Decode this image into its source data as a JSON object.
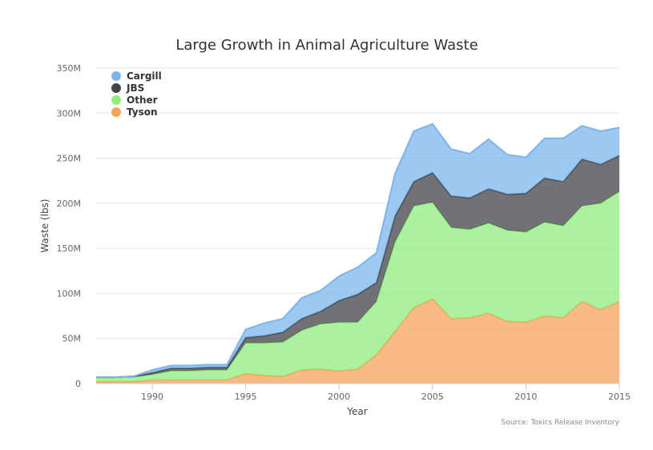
{
  "chart_data": {
    "type": "area",
    "stacked": true,
    "title": "Large Growth in Animal Agriculture Waste",
    "xlabel": "Year",
    "ylabel": "Waste (lbs)",
    "credit": "Source: Toxics Release Inventory",
    "xlim": [
      1987,
      2015
    ],
    "ylim": [
      0,
      350000000
    ],
    "x_ticks": [
      1990,
      1995,
      2000,
      2005,
      2010,
      2015
    ],
    "y_ticks": [
      {
        "value": 0,
        "label": "0"
      },
      {
        "value": 50000000,
        "label": "50M"
      },
      {
        "value": 100000000,
        "label": "100M"
      },
      {
        "value": 150000000,
        "label": "150M"
      },
      {
        "value": 200000000,
        "label": "200M"
      },
      {
        "value": 250000000,
        "label": "250M"
      },
      {
        "value": 300000000,
        "label": "300M"
      },
      {
        "value": 350000000,
        "label": "350M"
      }
    ],
    "legend_position": "top-left",
    "x": [
      1987,
      1988,
      1989,
      1990,
      1991,
      1992,
      1993,
      1994,
      1995,
      1996,
      1997,
      1998,
      1999,
      2000,
      2001,
      2002,
      2003,
      2004,
      2005,
      2006,
      2007,
      2008,
      2009,
      2010,
      2011,
      2012,
      2013,
      2014,
      2015
    ],
    "series": [
      {
        "name": "Cargill",
        "color": "#7cb5ec",
        "values": [
          0,
          0,
          0,
          3000000,
          3000000,
          3000000,
          3000000,
          3000000,
          9000000,
          14000000,
          15000000,
          23000000,
          23000000,
          27000000,
          30000000,
          33000000,
          47000000,
          56000000,
          54000000,
          52000000,
          49000000,
          55000000,
          44000000,
          40000000,
          44000000,
          48000000,
          37000000,
          37000000,
          31000000
        ]
      },
      {
        "name": "JBS",
        "color": "#434348",
        "values": [
          0,
          0,
          1000000,
          2000000,
          3000000,
          3000000,
          3000000,
          3000000,
          6000000,
          8000000,
          11000000,
          13000000,
          14000000,
          24000000,
          31000000,
          21000000,
          29000000,
          27000000,
          33000000,
          35000000,
          35000000,
          38000000,
          40000000,
          43000000,
          49000000,
          49000000,
          52000000,
          43000000,
          40000000
        ]
      },
      {
        "name": "Other",
        "color": "#90ed7d",
        "values": [
          5000000,
          5000000,
          5000000,
          6000000,
          10000000,
          10000000,
          11000000,
          11000000,
          34000000,
          36000000,
          38000000,
          44000000,
          50000000,
          54000000,
          52000000,
          59000000,
          99000000,
          113000000,
          107000000,
          101000000,
          98000000,
          100000000,
          101000000,
          100000000,
          104000000,
          102000000,
          106000000,
          118000000,
          122000000
        ]
      },
      {
        "name": "Tyson",
        "color": "#f7a35c",
        "values": [
          2000000,
          2000000,
          2000000,
          4000000,
          4000000,
          4000000,
          4000000,
          4000000,
          11000000,
          9000000,
          8000000,
          15000000,
          16000000,
          14000000,
          16000000,
          32000000,
          58000000,
          84000000,
          94000000,
          72000000,
          73000000,
          78000000,
          69000000,
          68000000,
          75000000,
          73000000,
          91000000,
          82000000,
          91000000
        ]
      }
    ]
  }
}
